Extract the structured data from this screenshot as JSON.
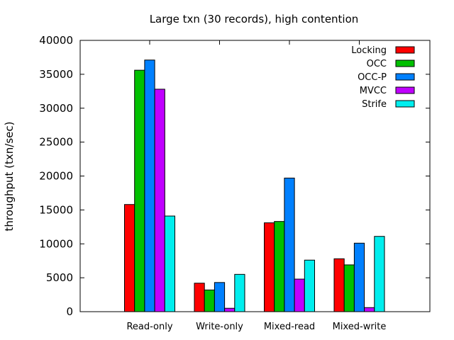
{
  "chart_data": {
    "type": "bar",
    "title": "Large txn (30 records), high contention",
    "xlabel": "",
    "ylabel": "throughput (txn/sec)",
    "ylim": [
      0,
      40000
    ],
    "yticks": [
      0,
      5000,
      10000,
      15000,
      20000,
      25000,
      30000,
      35000,
      40000
    ],
    "categories": [
      "Read-only",
      "Write-only",
      "Mixed-read",
      "Mixed-write"
    ],
    "legend_position": "top-right",
    "grid": false,
    "series": [
      {
        "name": "Locking",
        "color": "#ff0000",
        "values": [
          15800,
          4200,
          13100,
          7800
        ]
      },
      {
        "name": "OCC",
        "color": "#00c000",
        "values": [
          35600,
          3200,
          13300,
          6900
        ]
      },
      {
        "name": "OCC-P",
        "color": "#0080ff",
        "values": [
          37100,
          4300,
          19700,
          10100
        ]
      },
      {
        "name": "MVCC",
        "color": "#c000ff",
        "values": [
          32800,
          500,
          4800,
          600
        ]
      },
      {
        "name": "Strife",
        "color": "#00eeee",
        "values": [
          14100,
          5500,
          7600,
          11100
        ]
      }
    ]
  }
}
